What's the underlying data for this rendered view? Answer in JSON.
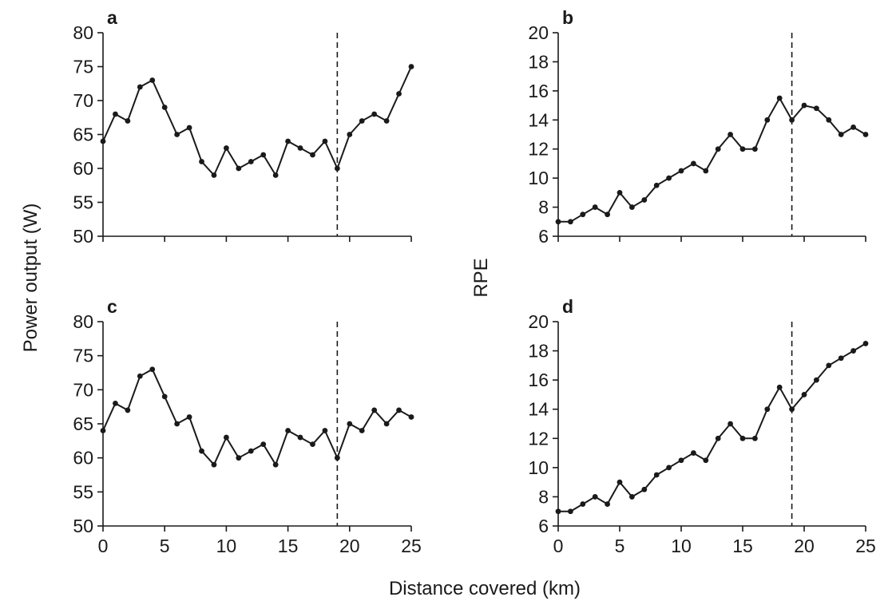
{
  "labels": {
    "left_ylabel": "Power output (W)",
    "right_ylabel": "RPE",
    "xlabel": "Distance covered (km)"
  },
  "chart_data": [
    {
      "panel": "a",
      "type": "line",
      "xlabel": "",
      "ylabel": "Power output (W)",
      "xlim": [
        0,
        25
      ],
      "ylim": [
        50,
        80
      ],
      "xticks": [
        0,
        5,
        10,
        15,
        20,
        25
      ],
      "yticks": [
        50,
        55,
        60,
        65,
        70,
        75,
        80
      ],
      "show_xtick_labels": false,
      "reference_line_x": 19,
      "grid": false,
      "x": [
        0,
        1,
        2,
        3,
        4,
        5,
        6,
        7,
        8,
        9,
        10,
        11,
        12,
        13,
        14,
        15,
        16,
        17,
        18,
        19,
        20,
        21,
        22,
        23,
        24,
        25
      ],
      "y": [
        64,
        68,
        67,
        72,
        73,
        69,
        65,
        66,
        61,
        59,
        63,
        60,
        61,
        62,
        59,
        64,
        63,
        62,
        64,
        60,
        65,
        67,
        68,
        67,
        71,
        75
      ]
    },
    {
      "panel": "b",
      "type": "line",
      "xlabel": "",
      "ylabel": "RPE",
      "xlim": [
        0,
        25
      ],
      "ylim": [
        6,
        20
      ],
      "xticks": [
        0,
        5,
        10,
        15,
        20,
        25
      ],
      "yticks": [
        6,
        8,
        10,
        12,
        14,
        16,
        18,
        20
      ],
      "show_xtick_labels": false,
      "reference_line_x": 19,
      "grid": false,
      "x": [
        0,
        1,
        2,
        3,
        4,
        5,
        6,
        7,
        8,
        9,
        10,
        11,
        12,
        13,
        14,
        15,
        16,
        17,
        18,
        19,
        20,
        21,
        22,
        23,
        24,
        25
      ],
      "y": [
        7,
        7,
        7.5,
        8,
        7.5,
        9,
        8,
        8.5,
        9.5,
        10,
        10.5,
        11,
        10.5,
        12,
        13,
        12,
        12,
        14,
        15.5,
        14,
        15,
        14.8,
        14,
        13,
        13.5,
        13
      ]
    },
    {
      "panel": "c",
      "type": "line",
      "xlabel": "Distance covered (km)",
      "ylabel": "Power output (W)",
      "xlim": [
        0,
        25
      ],
      "ylim": [
        50,
        80
      ],
      "xticks": [
        0,
        5,
        10,
        15,
        20,
        25
      ],
      "yticks": [
        50,
        55,
        60,
        65,
        70,
        75,
        80
      ],
      "show_xtick_labels": true,
      "reference_line_x": 19,
      "grid": false,
      "x": [
        0,
        1,
        2,
        3,
        4,
        5,
        6,
        7,
        8,
        9,
        10,
        11,
        12,
        13,
        14,
        15,
        16,
        17,
        18,
        19,
        20,
        21,
        22,
        23,
        24,
        25
      ],
      "y": [
        64,
        68,
        67,
        72,
        73,
        69,
        65,
        66,
        61,
        59,
        63,
        60,
        61,
        62,
        59,
        64,
        63,
        62,
        64,
        60,
        65,
        64,
        67,
        65,
        67,
        66
      ]
    },
    {
      "panel": "d",
      "type": "line",
      "xlabel": "Distance covered (km)",
      "ylabel": "RPE",
      "xlim": [
        0,
        25
      ],
      "ylim": [
        6,
        20
      ],
      "xticks": [
        0,
        5,
        10,
        15,
        20,
        25
      ],
      "yticks": [
        6,
        8,
        10,
        12,
        14,
        16,
        18,
        20
      ],
      "show_xtick_labels": true,
      "reference_line_x": 19,
      "grid": false,
      "x": [
        0,
        1,
        2,
        3,
        4,
        5,
        6,
        7,
        8,
        9,
        10,
        11,
        12,
        13,
        14,
        15,
        16,
        17,
        18,
        19,
        20,
        21,
        22,
        23,
        24,
        25
      ],
      "y": [
        7,
        7,
        7.5,
        8,
        7.5,
        9,
        8,
        8.5,
        9.5,
        10,
        10.5,
        11,
        10.5,
        12,
        13,
        12,
        12,
        14,
        15.5,
        14,
        15,
        16,
        17,
        17.5,
        18,
        18.5
      ]
    }
  ]
}
